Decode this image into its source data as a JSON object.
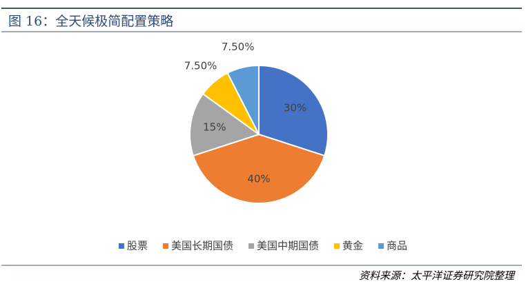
{
  "chart_data": {
    "type": "pie",
    "title": "图 16：全天候极简配置策略",
    "categories": [
      "股票",
      "美国长期国债",
      "美国中期国债",
      "黄金",
      "商品"
    ],
    "values": [
      30,
      40,
      15,
      7.5,
      7.5
    ],
    "value_labels": [
      "30%",
      "40%",
      "15%",
      "7.50%",
      "7.50%"
    ],
    "colors": [
      "#4472c4",
      "#ed7d31",
      "#a5a5a5",
      "#ffc000",
      "#5b9bd5"
    ],
    "legend": "bottom",
    "source": "资料来源：太平洋证券研究院整理"
  }
}
